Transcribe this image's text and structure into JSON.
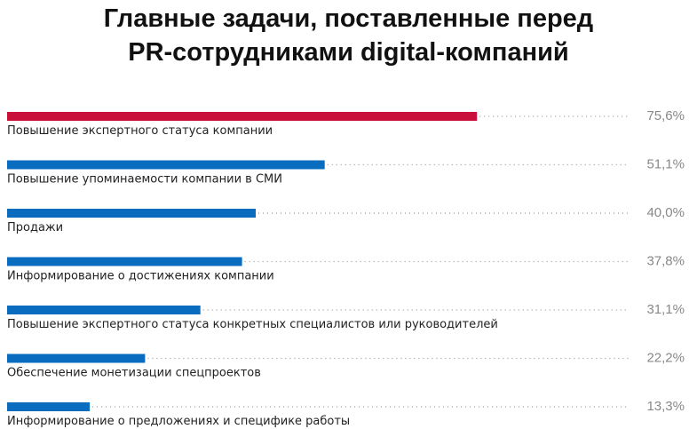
{
  "chart_data": {
    "type": "bar",
    "orientation": "horizontal",
    "title_lines": [
      "Главные задачи, поставленные перед",
      "PR-сотрудниками digital-компаний"
    ],
    "categories": [
      "Повышение экспертного статуса компании",
      "Повышение упоминаемости компании в СМИ",
      "Продажи",
      "Информирование о достижениях компании",
      "Повышение экспертного статуса конкретных специалистов или руководителей",
      "Обеспечение монетизации спецпроектов",
      "Информирование о предложениях и специфике работы"
    ],
    "values": [
      75.6,
      51.1,
      40.0,
      37.8,
      31.1,
      22.2,
      13.3
    ],
    "value_labels": [
      "75,6%",
      "51,1%",
      "40,0%",
      "37,8%",
      "31,1%",
      "22,2%",
      "13,3%"
    ],
    "xlim": [
      0,
      100
    ],
    "unit": "%",
    "colors": {
      "highlight": "#c8103a",
      "default": "#0a6cbf",
      "dots": "#999999",
      "value_text": "#888888"
    },
    "highlight_index": 0,
    "grid": false,
    "legend": "none"
  }
}
